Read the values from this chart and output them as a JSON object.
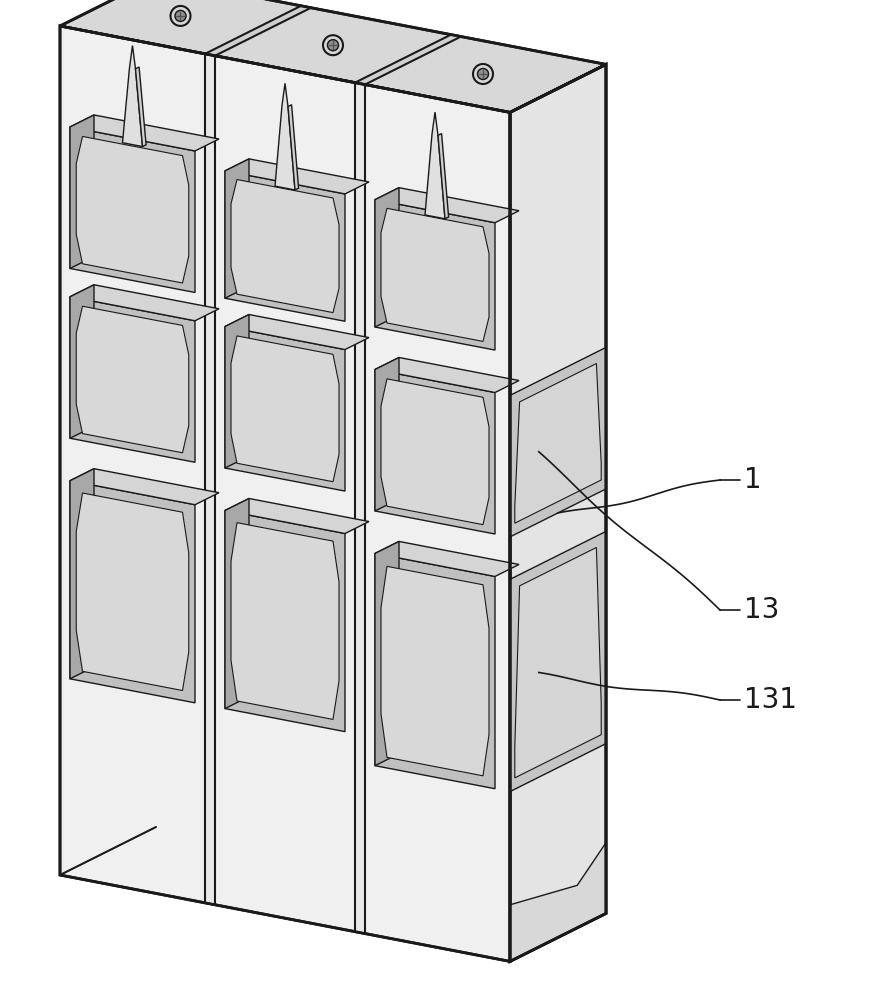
{
  "background_color": "#ffffff",
  "line_color": "#1a1a1a",
  "lw_thin": 1.0,
  "lw_med": 1.5,
  "lw_thick": 2.0,
  "fc_top": "#d8d8d8",
  "fc_front": "#f0f0f0",
  "fc_right": "#e4e4e4",
  "fc_slot_bg": "#c8c8c8",
  "fc_slot_inner": "#b0b0b0",
  "fc_white": "#f8f8f8",
  "labels": [
    "1",
    "13",
    "131"
  ],
  "label_fontsize": 20
}
